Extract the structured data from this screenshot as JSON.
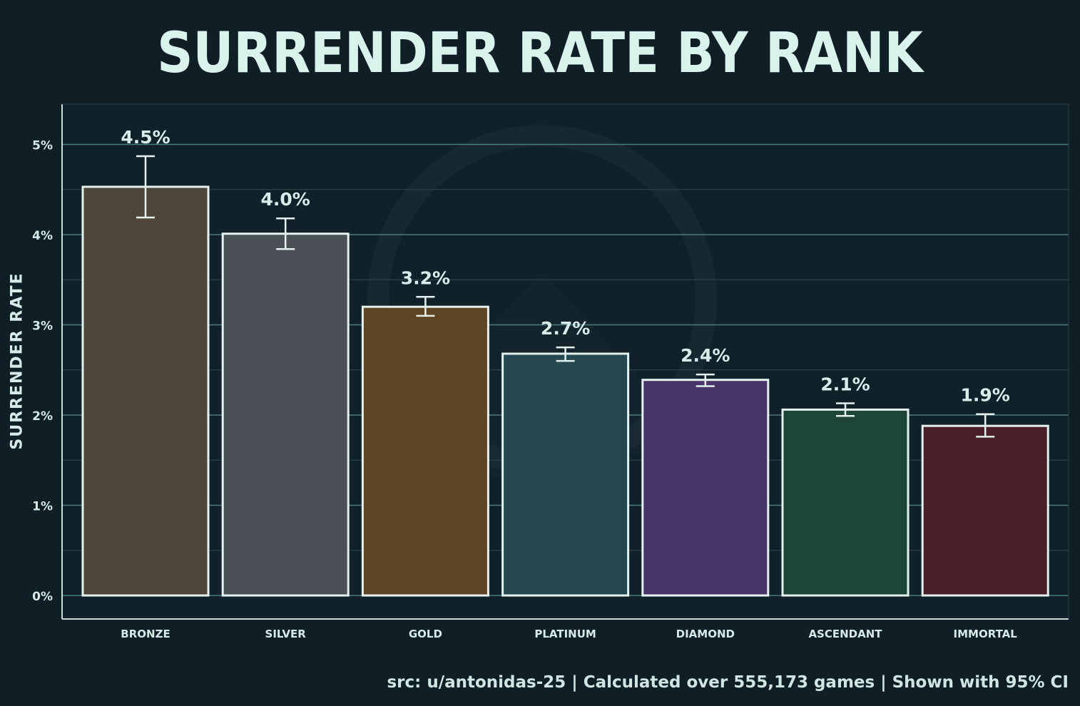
{
  "chart_data": {
    "type": "bar",
    "title": "SURRENDER RATE BY RANK",
    "xlabel": "",
    "ylabel": "SURRENDER  RATE",
    "categories": [
      "BRONZE",
      "SILVER",
      "GOLD",
      "PLATINUM",
      "DIAMOND",
      "ASCENDANT",
      "IMMORTAL"
    ],
    "values": [
      4.53,
      4.01,
      3.2,
      2.68,
      2.39,
      2.06,
      1.88
    ],
    "value_labels": [
      "4.5%",
      "4.0%",
      "3.2%",
      "2.7%",
      "2.4%",
      "2.1%",
      "1.9%"
    ],
    "ci_low": [
      4.19,
      3.84,
      3.1,
      2.6,
      2.32,
      1.99,
      1.76
    ],
    "ci_high": [
      4.87,
      4.18,
      3.31,
      2.75,
      2.45,
      2.13,
      2.01
    ],
    "ylim": [
      0,
      5.45
    ],
    "yticks": [
      0,
      1,
      2,
      3,
      4,
      5
    ],
    "ytick_labels": [
      "0%",
      "1%",
      "2%",
      "3%",
      "4%",
      "5%"
    ],
    "grid": true,
    "colors": [
      "#4f4639",
      "#4a5056",
      "#5f4524",
      "#25474f",
      "#473468",
      "#1d4636",
      "#4a1f2a"
    ],
    "source": "src: u/antonidas-25 | Calculated over 555,173 games | Shown with 95% CI"
  }
}
